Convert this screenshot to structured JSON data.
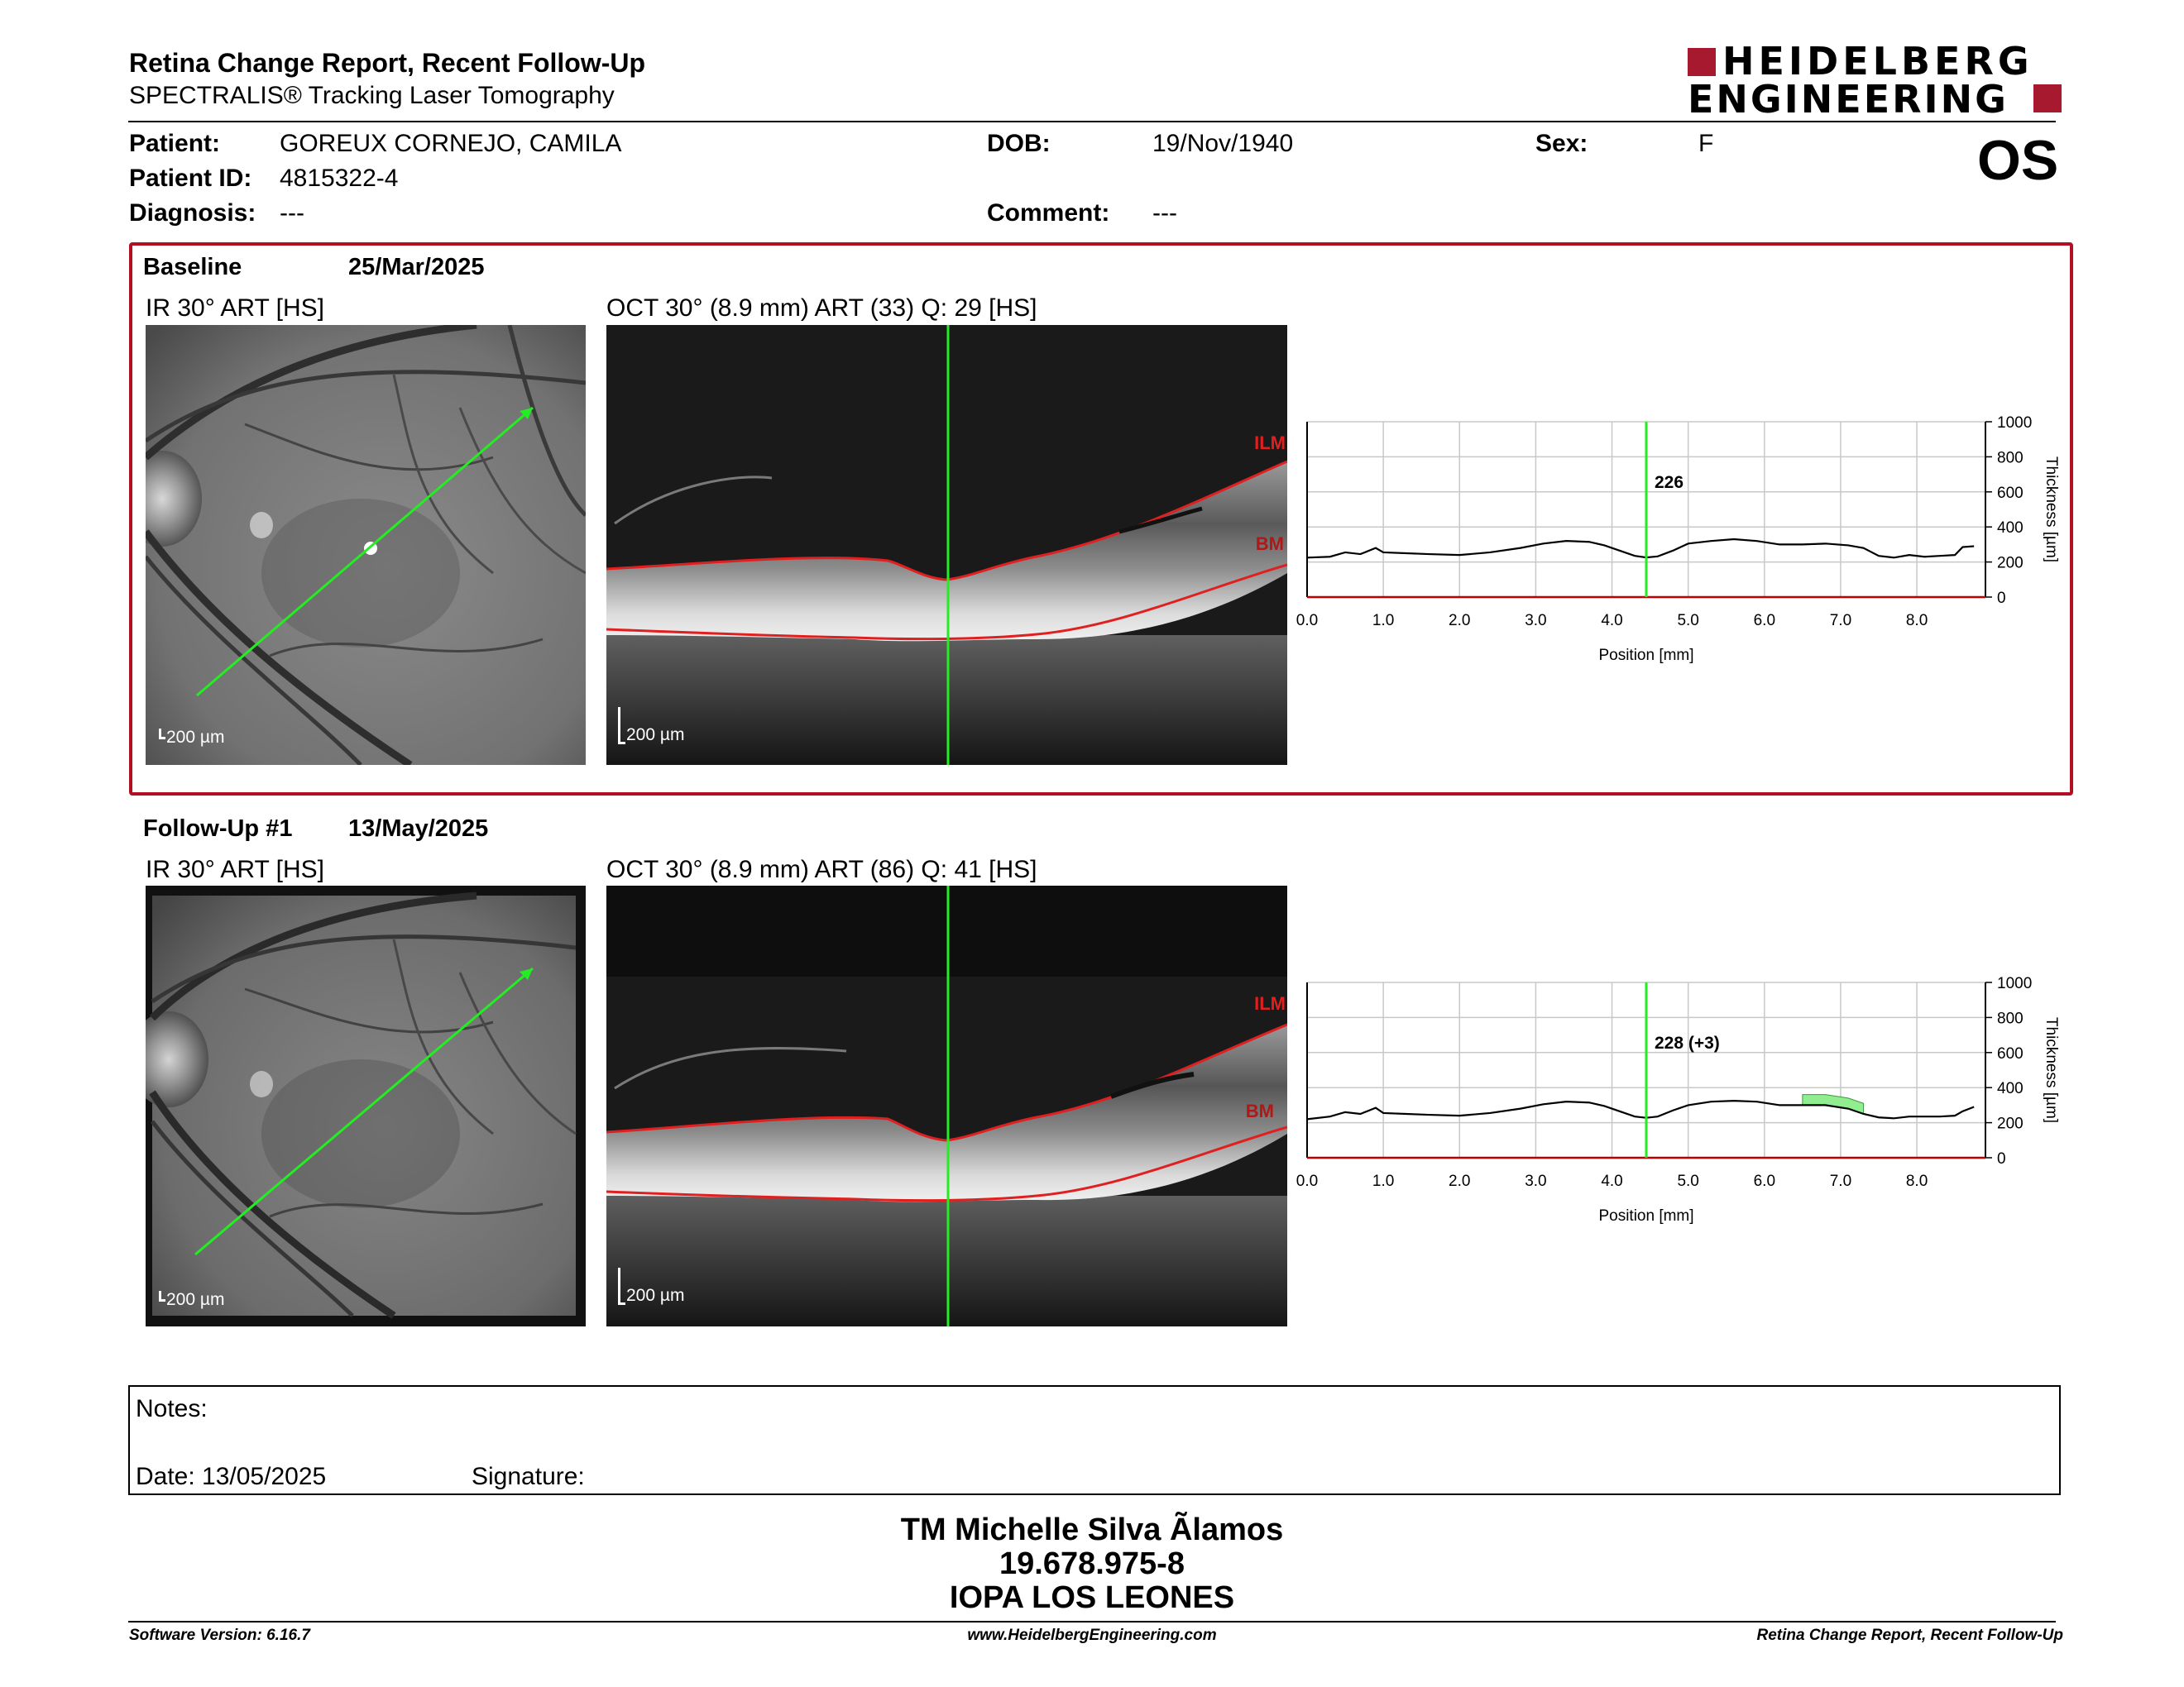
{
  "header": {
    "title": "Retina Change Report, Recent Follow-Up",
    "subtitle": "SPECTRALIS® Tracking Laser Tomography",
    "logo_line1": "HEIDELBERG",
    "logo_line2": "ENGINEERING",
    "eye": "OS"
  },
  "patient": {
    "patient_label": "Patient:",
    "patient_value": "GOREUX CORNEJO, CAMILA",
    "dob_label": "DOB:",
    "dob_value": "19/Nov/1940",
    "sex_label": "Sex:",
    "sex_value": "F",
    "id_label": "Patient ID:",
    "id_value": "4815322-4",
    "diagnosis_label": "Diagnosis:",
    "diagnosis_value": "---",
    "comment_label": "Comment:",
    "comment_value": "---"
  },
  "baseline": {
    "label": "Baseline",
    "date": "25/Mar/2025",
    "ir_label": "IR 30° ART [HS]",
    "oct_label": "OCT 30° (8.9 mm) ART (33) Q: 29 [HS]",
    "ir_scale": "200 µm",
    "oct_scale": "200 µm",
    "ilm": "ILM",
    "bm": "BM",
    "thickness_readout": "226"
  },
  "followup": {
    "label": "Follow-Up #1",
    "date": "13/May/2025",
    "ir_label": "IR 30° ART [HS]",
    "oct_label": "OCT 30° (8.9 mm) ART (86) Q: 41 [HS]",
    "ir_scale": "200 µm",
    "oct_scale": "200 µm",
    "ilm": "ILM",
    "bm": "BM",
    "thickness_readout": "228 (+3)"
  },
  "chart_data": [
    {
      "type": "line",
      "xlabel": "Position [mm]",
      "ylabel": "Thickness [µm]",
      "xlim": [
        0.0,
        8.9
      ],
      "ylim": [
        0,
        1000
      ],
      "x_ticks": [
        "0.0",
        "1.0",
        "2.0",
        "3.0",
        "4.0",
        "5.0",
        "6.0",
        "7.0",
        "8.0"
      ],
      "y_ticks": [
        "0",
        "200",
        "400",
        "600",
        "800",
        "1000"
      ],
      "grid": true,
      "cursor_x": 4.45,
      "cursor_label": "226",
      "x": [
        0.0,
        0.3,
        0.5,
        0.7,
        0.9,
        1.0,
        1.3,
        1.6,
        2.0,
        2.4,
        2.8,
        3.1,
        3.4,
        3.7,
        3.9,
        4.1,
        4.3,
        4.45,
        4.6,
        4.8,
        5.0,
        5.3,
        5.6,
        5.9,
        6.2,
        6.5,
        6.8,
        7.1,
        7.3,
        7.5,
        7.7,
        7.9,
        8.1,
        8.3,
        8.5,
        8.6,
        8.75
      ],
      "y": [
        225,
        230,
        255,
        245,
        280,
        255,
        250,
        245,
        240,
        255,
        280,
        305,
        320,
        315,
        295,
        265,
        235,
        226,
        232,
        265,
        305,
        320,
        330,
        320,
        300,
        300,
        305,
        295,
        280,
        235,
        225,
        240,
        230,
        235,
        240,
        285,
        290
      ]
    },
    {
      "type": "line",
      "xlabel": "Position [mm]",
      "ylabel": "Thickness [µm]",
      "xlim": [
        0.0,
        8.9
      ],
      "ylim": [
        0,
        1000
      ],
      "x_ticks": [
        "0.0",
        "1.0",
        "2.0",
        "3.0",
        "4.0",
        "5.0",
        "6.0",
        "7.0",
        "8.0"
      ],
      "y_ticks": [
        "0",
        "200",
        "400",
        "600",
        "800",
        "1000"
      ],
      "grid": true,
      "cursor_x": 4.45,
      "cursor_label": "228 (+3)",
      "x": [
        0.0,
        0.3,
        0.5,
        0.7,
        0.9,
        1.0,
        1.3,
        1.6,
        2.0,
        2.4,
        2.8,
        3.1,
        3.4,
        3.7,
        3.9,
        4.1,
        4.3,
        4.45,
        4.6,
        4.8,
        5.0,
        5.3,
        5.6,
        5.9,
        6.2,
        6.5,
        6.8,
        7.1,
        7.3,
        7.5,
        7.7,
        7.9,
        8.1,
        8.3,
        8.5,
        8.6,
        8.75
      ],
      "y": [
        220,
        235,
        260,
        250,
        285,
        255,
        250,
        245,
        240,
        255,
        280,
        305,
        320,
        315,
        295,
        265,
        235,
        228,
        235,
        270,
        300,
        320,
        325,
        320,
        300,
        300,
        300,
        280,
        250,
        230,
        225,
        235,
        235,
        235,
        240,
        265,
        290
      ],
      "increase_region": {
        "x_from": 6.5,
        "x_to": 7.4,
        "color": "#90ee90"
      }
    }
  ],
  "notes": {
    "notes_label": "Notes:",
    "date_label": "Date: 13/05/2025",
    "signature_label": "Signature:"
  },
  "signatory": {
    "name": "TM Michelle Silva Ãlamos",
    "id": "19.678.975-8",
    "org": "IOPA LOS LEONES"
  },
  "footer": {
    "version": "Software Version: 6.16.7",
    "website": "www.HeidelbergEngineering.com",
    "report_name": "Retina Change Report, Recent Follow-Up"
  },
  "colors": {
    "brand_red": "#a6192e",
    "baseline_frame": "#b01020",
    "scan_green": "#22ee22",
    "layer_red": "#e02020",
    "increase_fill": "#90ee90"
  }
}
